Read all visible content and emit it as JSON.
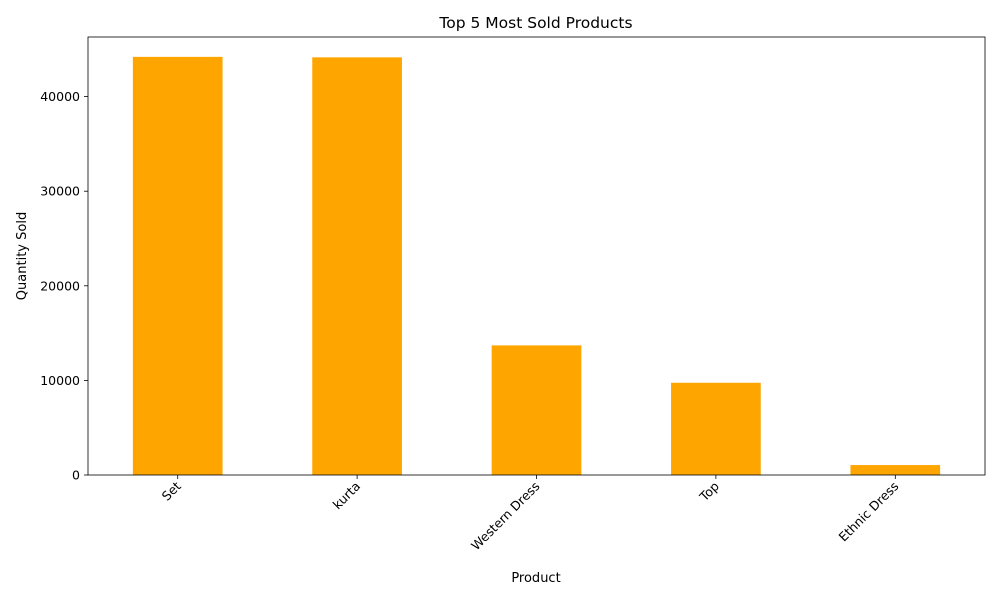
{
  "chart_data": {
    "type": "bar",
    "title": "Top 5 Most Sold Products",
    "xlabel": "Product",
    "ylabel": "Quantity Sold",
    "categories": [
      "Set",
      "kurta",
      "Western Dress",
      "Top",
      "Ethnic Dress"
    ],
    "values": [
      44200,
      44150,
      13700,
      9750,
      1050
    ],
    "ylim": [
      0,
      46300
    ],
    "yticks": [
      0,
      10000,
      20000,
      30000,
      40000
    ],
    "ytick_labels": [
      "0",
      "10000",
      "20000",
      "30000",
      "40000"
    ],
    "bar_color": "#FFA500",
    "grid": false,
    "xtick_rotation_deg": 45
  }
}
